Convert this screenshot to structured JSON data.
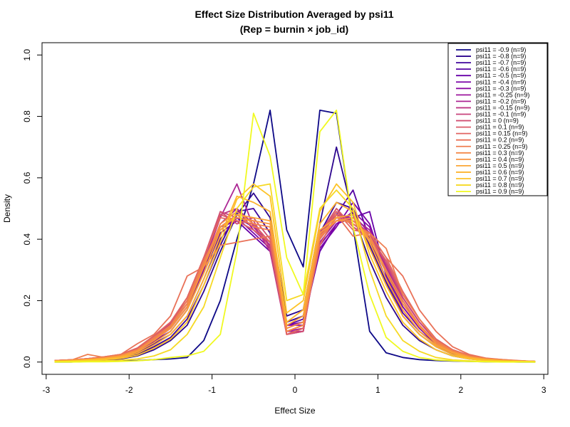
{
  "chart_data": {
    "type": "line",
    "title": "Effect Size Distribution Averaged by psi11",
    "subtitle": "(Rep = burnin × job_id)",
    "xlabel": "Effect Size",
    "ylabel": "Density",
    "xlim": [
      -3.05,
      3.05
    ],
    "ylim": [
      -0.04,
      1.04
    ],
    "x_ticks": [
      -3,
      -2,
      -1,
      0,
      1,
      2,
      3
    ],
    "x_tick_labels": [
      "-3",
      "-2",
      "-1",
      "0",
      "1",
      "2",
      "3"
    ],
    "y_ticks": [
      0.0,
      0.2,
      0.4,
      0.6,
      0.8,
      1.0
    ],
    "y_tick_labels": [
      "0.0",
      "0.2",
      "0.4",
      "0.6",
      "0.8",
      "1.0"
    ],
    "legend_position": "top-right",
    "grid": false,
    "x": [
      -2.9,
      -2.7,
      -2.5,
      -2.3,
      -2.1,
      -1.9,
      -1.7,
      -1.5,
      -1.3,
      -1.1,
      -0.9,
      -0.7,
      -0.5,
      -0.3,
      -0.1,
      0.1,
      0.3,
      0.5,
      0.7,
      0.9,
      1.1,
      1.3,
      1.5,
      1.7,
      1.9,
      2.1,
      2.3,
      2.5,
      2.7,
      2.9
    ],
    "series": [
      {
        "name": "psi11 = -0.9 (n=9)",
        "color": "#0d0887",
        "values": [
          0.0,
          0.0,
          0.002,
          0.003,
          0.004,
          0.005,
          0.008,
          0.01,
          0.015,
          0.07,
          0.2,
          0.4,
          0.58,
          0.82,
          0.43,
          0.31,
          0.82,
          0.81,
          0.44,
          0.1,
          0.03,
          0.015,
          0.008,
          0.005,
          0.003,
          0.002,
          0.001,
          0.001,
          0.0,
          0.0
        ]
      },
      {
        "name": "psi11 = -0.8 (n=9)",
        "color": "#2d068f",
        "values": [
          0.002,
          0.003,
          0.005,
          0.007,
          0.01,
          0.02,
          0.04,
          0.07,
          0.12,
          0.23,
          0.36,
          0.48,
          0.55,
          0.47,
          0.15,
          0.17,
          0.45,
          0.7,
          0.48,
          0.33,
          0.21,
          0.12,
          0.07,
          0.04,
          0.02,
          0.01,
          0.006,
          0.003,
          0.002,
          0.001
        ]
      },
      {
        "name": "psi11 = -0.7 (n=9)",
        "color": "#3e049c",
        "values": [
          0.003,
          0.004,
          0.006,
          0.009,
          0.013,
          0.025,
          0.05,
          0.08,
          0.14,
          0.25,
          0.38,
          0.49,
          0.5,
          0.42,
          0.13,
          0.15,
          0.42,
          0.52,
          0.5,
          0.38,
          0.26,
          0.15,
          0.09,
          0.05,
          0.025,
          0.013,
          0.007,
          0.004,
          0.003,
          0.001
        ]
      },
      {
        "name": "psi11 = -0.6 (n=9)",
        "color": "#5402a3",
        "values": [
          0.003,
          0.004,
          0.007,
          0.01,
          0.015,
          0.03,
          0.06,
          0.09,
          0.15,
          0.27,
          0.4,
          0.47,
          0.44,
          0.38,
          0.12,
          0.14,
          0.38,
          0.48,
          0.56,
          0.4,
          0.27,
          0.16,
          0.1,
          0.055,
          0.028,
          0.014,
          0.008,
          0.005,
          0.003,
          0.001
        ]
      },
      {
        "name": "psi11 = -0.5 (n=9)",
        "color": "#6700a8",
        "values": [
          0.004,
          0.005,
          0.008,
          0.012,
          0.018,
          0.033,
          0.065,
          0.1,
          0.17,
          0.29,
          0.42,
          0.46,
          0.41,
          0.36,
          0.11,
          0.13,
          0.36,
          0.45,
          0.47,
          0.49,
          0.28,
          0.17,
          0.1,
          0.06,
          0.03,
          0.015,
          0.009,
          0.005,
          0.003,
          0.002
        ]
      },
      {
        "name": "psi11 = -0.4 (n=9)",
        "color": "#7a02a8",
        "values": [
          0.004,
          0.005,
          0.008,
          0.012,
          0.02,
          0.035,
          0.07,
          0.1,
          0.17,
          0.3,
          0.43,
          0.47,
          0.42,
          0.37,
          0.12,
          0.13,
          0.37,
          0.44,
          0.52,
          0.45,
          0.29,
          0.18,
          0.11,
          0.06,
          0.03,
          0.016,
          0.009,
          0.006,
          0.003,
          0.002
        ]
      },
      {
        "name": "psi11 = -0.3 (n=9)",
        "color": "#8b0aa5",
        "values": [
          0.004,
          0.006,
          0.009,
          0.013,
          0.02,
          0.035,
          0.07,
          0.11,
          0.18,
          0.31,
          0.44,
          0.46,
          0.43,
          0.39,
          0.12,
          0.12,
          0.38,
          0.45,
          0.49,
          0.44,
          0.3,
          0.19,
          0.12,
          0.06,
          0.035,
          0.018,
          0.01,
          0.006,
          0.003,
          0.002
        ]
      },
      {
        "name": "psi11 = -0.25 (n=9)",
        "color": "#9c179e",
        "values": [
          0.004,
          0.006,
          0.009,
          0.014,
          0.022,
          0.038,
          0.075,
          0.11,
          0.18,
          0.31,
          0.45,
          0.5,
          0.43,
          0.38,
          0.1,
          0.11,
          0.39,
          0.46,
          0.48,
          0.42,
          0.31,
          0.2,
          0.12,
          0.065,
          0.035,
          0.018,
          0.01,
          0.006,
          0.004,
          0.002
        ]
      },
      {
        "name": "psi11 = -0.2 (n=9)",
        "color": "#ac2694",
        "values": [
          0.005,
          0.006,
          0.01,
          0.014,
          0.022,
          0.04,
          0.075,
          0.12,
          0.19,
          0.32,
          0.47,
          0.58,
          0.44,
          0.38,
          0.1,
          0.1,
          0.4,
          0.47,
          0.47,
          0.43,
          0.31,
          0.2,
          0.12,
          0.065,
          0.035,
          0.02,
          0.011,
          0.007,
          0.004,
          0.002
        ]
      },
      {
        "name": "psi11 = -0.15 (n=9)",
        "color": "#bd3786",
        "values": [
          0.005,
          0.007,
          0.01,
          0.015,
          0.023,
          0.042,
          0.08,
          0.12,
          0.19,
          0.33,
          0.48,
          0.5,
          0.45,
          0.36,
          0.09,
          0.1,
          0.41,
          0.48,
          0.46,
          0.42,
          0.32,
          0.21,
          0.13,
          0.07,
          0.037,
          0.02,
          0.011,
          0.007,
          0.004,
          0.002
        ]
      },
      {
        "name": "psi11 = -0.1 (n=9)",
        "color": "#c7427b",
        "values": [
          0.005,
          0.007,
          0.011,
          0.016,
          0.024,
          0.043,
          0.08,
          0.125,
          0.2,
          0.33,
          0.49,
          0.47,
          0.46,
          0.37,
          0.09,
          0.1,
          0.41,
          0.49,
          0.45,
          0.41,
          0.32,
          0.21,
          0.13,
          0.07,
          0.038,
          0.02,
          0.012,
          0.007,
          0.004,
          0.002
        ]
      },
      {
        "name": "psi11 = 0 (n=9)",
        "color": "#d14e72",
        "values": [
          0.005,
          0.007,
          0.011,
          0.016,
          0.024,
          0.045,
          0.085,
          0.13,
          0.2,
          0.34,
          0.49,
          0.45,
          0.47,
          0.4,
          0.09,
          0.1,
          0.42,
          0.5,
          0.44,
          0.4,
          0.33,
          0.22,
          0.14,
          0.075,
          0.04,
          0.021,
          0.012,
          0.007,
          0.004,
          0.002
        ]
      },
      {
        "name": "psi11 = 0.1 (n=9)",
        "color": "#da5b69",
        "values": [
          0.005,
          0.007,
          0.011,
          0.016,
          0.025,
          0.045,
          0.085,
          0.13,
          0.21,
          0.34,
          0.48,
          0.46,
          0.45,
          0.39,
          0.09,
          0.11,
          0.41,
          0.5,
          0.44,
          0.41,
          0.33,
          0.22,
          0.14,
          0.075,
          0.04,
          0.021,
          0.012,
          0.007,
          0.004,
          0.002
        ]
      },
      {
        "name": "psi11 = 0.15 (n=9)",
        "color": "#e16462",
        "values": [
          0.005,
          0.007,
          0.011,
          0.017,
          0.025,
          0.046,
          0.086,
          0.13,
          0.21,
          0.34,
          0.47,
          0.46,
          0.43,
          0.39,
          0.09,
          0.11,
          0.4,
          0.49,
          0.43,
          0.42,
          0.34,
          0.23,
          0.14,
          0.075,
          0.04,
          0.022,
          0.012,
          0.008,
          0.004,
          0.002
        ]
      },
      {
        "name": "psi11 = 0.2 (n=9)",
        "color": "#e97158",
        "values": [
          0.005,
          0.007,
          0.011,
          0.017,
          0.025,
          0.06,
          0.09,
          0.15,
          0.28,
          0.31,
          0.38,
          0.39,
          0.4,
          0.41,
          0.1,
          0.12,
          0.38,
          0.48,
          0.41,
          0.42,
          0.34,
          0.28,
          0.17,
          0.1,
          0.05,
          0.025,
          0.013,
          0.008,
          0.005,
          0.002
        ]
      },
      {
        "name": "psi11 = 0.25 (n=9)",
        "color": "#ef7e50",
        "values": [
          0.004,
          0.006,
          0.025,
          0.015,
          0.022,
          0.04,
          0.08,
          0.12,
          0.2,
          0.33,
          0.44,
          0.48,
          0.44,
          0.43,
          0.1,
          0.12,
          0.4,
          0.47,
          0.45,
          0.42,
          0.37,
          0.22,
          0.14,
          0.07,
          0.038,
          0.02,
          0.011,
          0.007,
          0.004,
          0.002
        ]
      },
      {
        "name": "psi11 = 0.3 (n=9)",
        "color": "#f48849",
        "values": [
          0.004,
          0.006,
          0.009,
          0.014,
          0.022,
          0.04,
          0.075,
          0.115,
          0.19,
          0.32,
          0.45,
          0.49,
          0.45,
          0.44,
          0.1,
          0.12,
          0.41,
          0.46,
          0.46,
          0.41,
          0.3,
          0.2,
          0.12,
          0.065,
          0.035,
          0.018,
          0.01,
          0.006,
          0.004,
          0.002
        ]
      },
      {
        "name": "psi11 = 0.4 (n=9)",
        "color": "#f89441",
        "values": [
          0.004,
          0.006,
          0.009,
          0.013,
          0.02,
          0.037,
          0.07,
          0.11,
          0.18,
          0.31,
          0.44,
          0.47,
          0.46,
          0.45,
          0.11,
          0.13,
          0.42,
          0.46,
          0.47,
          0.4,
          0.29,
          0.19,
          0.115,
          0.06,
          0.033,
          0.017,
          0.01,
          0.006,
          0.003,
          0.002
        ]
      },
      {
        "name": "psi11 = 0.5 (n=9)",
        "color": "#fca636",
        "values": [
          0.003,
          0.005,
          0.008,
          0.012,
          0.018,
          0.033,
          0.063,
          0.1,
          0.17,
          0.29,
          0.43,
          0.48,
          0.47,
          0.46,
          0.12,
          0.15,
          0.43,
          0.47,
          0.48,
          0.39,
          0.27,
          0.17,
          0.1,
          0.055,
          0.03,
          0.015,
          0.009,
          0.005,
          0.003,
          0.001
        ]
      },
      {
        "name": "psi11 = 0.6 (n=9)",
        "color": "#fdb32f",
        "values": [
          0.003,
          0.004,
          0.007,
          0.01,
          0.015,
          0.028,
          0.055,
          0.09,
          0.15,
          0.27,
          0.41,
          0.54,
          0.52,
          0.49,
          0.13,
          0.17,
          0.45,
          0.52,
          0.49,
          0.37,
          0.25,
          0.15,
          0.09,
          0.05,
          0.025,
          0.013,
          0.007,
          0.004,
          0.002,
          0.001
        ]
      },
      {
        "name": "psi11 = 0.7 (n=9)",
        "color": "#fdc328",
        "values": [
          0.002,
          0.003,
          0.006,
          0.008,
          0.012,
          0.022,
          0.045,
          0.075,
          0.13,
          0.25,
          0.39,
          0.53,
          0.58,
          0.54,
          0.16,
          0.2,
          0.49,
          0.58,
          0.52,
          0.35,
          0.23,
          0.13,
          0.075,
          0.04,
          0.02,
          0.01,
          0.005,
          0.003,
          0.002,
          0.001
        ]
      },
      {
        "name": "psi11 = 0.8 (n=9)",
        "color": "#f6d924",
        "values": [
          0.001,
          0.002,
          0.003,
          0.004,
          0.006,
          0.01,
          0.02,
          0.04,
          0.09,
          0.18,
          0.34,
          0.5,
          0.57,
          0.58,
          0.2,
          0.22,
          0.5,
          0.56,
          0.5,
          0.3,
          0.15,
          0.07,
          0.035,
          0.015,
          0.007,
          0.004,
          0.002,
          0.001,
          0.001,
          0.0
        ]
      },
      {
        "name": "psi11 = 0.9 (n=9)",
        "color": "#f0f921",
        "values": [
          0.0,
          0.0,
          0.001,
          0.001,
          0.002,
          0.004,
          0.008,
          0.015,
          0.02,
          0.035,
          0.09,
          0.36,
          0.81,
          0.67,
          0.34,
          0.22,
          0.75,
          0.82,
          0.44,
          0.22,
          0.08,
          0.035,
          0.015,
          0.007,
          0.004,
          0.002,
          0.001,
          0.0,
          0.0,
          0.0
        ]
      }
    ]
  }
}
